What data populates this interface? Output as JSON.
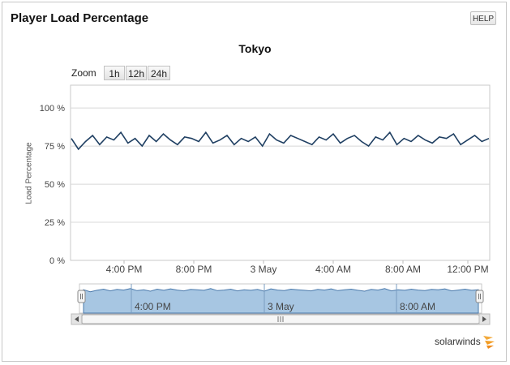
{
  "widget": {
    "title": "Player Load Percentage",
    "help_label": "HELP"
  },
  "zoom": {
    "label": "Zoom",
    "options": [
      "1h",
      "12h",
      "24h"
    ]
  },
  "logo_text": "solarwinds",
  "chart_data": {
    "type": "line",
    "title": "Tokyo",
    "ylabel": "Load Percentage",
    "ylim": [
      0,
      100
    ],
    "y_ticks": [
      "0 %",
      "25 %",
      "50 %",
      "75 %",
      "100 %"
    ],
    "x_ticks": [
      "4:00 PM",
      "8:00 PM",
      "3 May",
      "4:00 AM",
      "8:00 AM",
      "12:00 PM"
    ],
    "series": [
      {
        "color": "#1f3f62",
        "values": [
          80,
          73,
          78,
          82,
          76,
          81,
          79,
          84,
          77,
          80,
          75,
          82,
          78,
          83,
          79,
          76,
          81,
          80,
          78,
          84,
          77,
          79,
          82,
          76,
          80,
          78,
          81,
          75,
          83,
          79,
          77,
          82,
          80,
          78,
          76,
          81,
          79,
          83,
          77,
          80,
          82,
          78,
          75,
          81,
          79,
          84,
          76,
          80,
          78,
          82,
          79,
          77,
          81,
          80,
          83,
          76,
          79,
          82,
          78,
          80
        ]
      }
    ],
    "navigator_x_ticks": [
      "4:00 PM",
      "3 May",
      "8:00 AM"
    ],
    "navigator_range": [
      0,
      1
    ]
  }
}
